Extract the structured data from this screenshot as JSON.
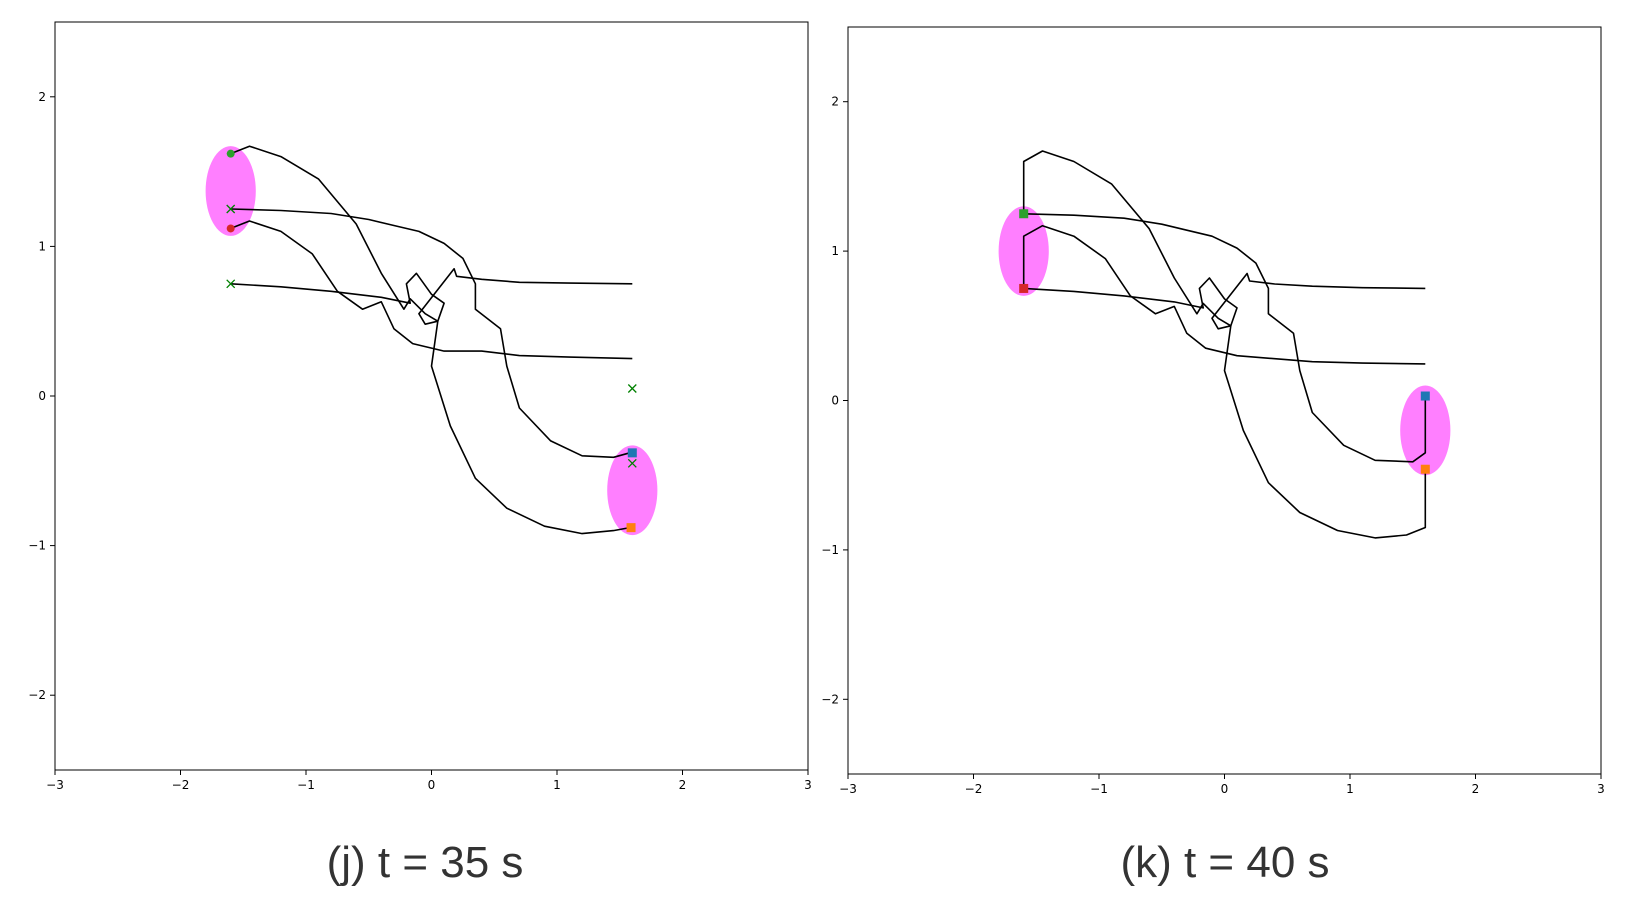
{
  "colors": {
    "ellipse": "#ff00ff",
    "path": "#000000",
    "green": "#2ca02c",
    "red": "#d62728",
    "blue": "#1f77b4",
    "orange": "#ff7f0e",
    "goal_x": "#008000"
  },
  "captions": [
    "(j) t = 35 s",
    "(k) t = 40 s"
  ],
  "chart_data": [
    {
      "type": "scatter",
      "xlim": [
        -3,
        3
      ],
      "ylim": [
        -2.5,
        2.5
      ],
      "xticks": [
        -3,
        -2,
        -1,
        0,
        1,
        2,
        3
      ],
      "yticks": [
        -2,
        -1,
        0,
        1,
        2
      ],
      "xtick_labels": [
        "−3",
        "−2",
        "−1",
        "0",
        "1",
        "2",
        "3"
      ],
      "ytick_labels": [
        "−2",
        "−1",
        "0",
        "1",
        "2"
      ],
      "ellipses": [
        {
          "cx": -1.6,
          "cy": 1.37,
          "rx": 0.2,
          "ry": 0.3
        },
        {
          "cx": 1.6,
          "cy": -0.63,
          "rx": 0.2,
          "ry": 0.3
        }
      ],
      "paths": [
        [
          [
            -1.6,
            1.62
          ],
          [
            -1.45,
            1.67
          ],
          [
            -1.2,
            1.6
          ],
          [
            -0.9,
            1.45
          ],
          [
            -0.6,
            1.15
          ],
          [
            -0.4,
            0.82
          ],
          [
            -0.22,
            0.58
          ],
          [
            -0.17,
            0.65
          ],
          [
            -0.05,
            0.55
          ],
          [
            0.05,
            0.5
          ],
          [
            0.0,
            0.2
          ],
          [
            0.15,
            -0.2
          ],
          [
            0.35,
            -0.55
          ],
          [
            0.6,
            -0.75
          ],
          [
            0.9,
            -0.87
          ],
          [
            1.2,
            -0.92
          ],
          [
            1.45,
            -0.9
          ],
          [
            1.58,
            -0.88
          ]
        ],
        [
          [
            -1.6,
            1.25
          ],
          [
            -1.2,
            1.24
          ],
          [
            -0.8,
            1.22
          ],
          [
            -0.5,
            1.18
          ],
          [
            -0.3,
            1.14
          ],
          [
            -0.1,
            1.1
          ],
          [
            0.1,
            1.02
          ],
          [
            0.25,
            0.92
          ],
          [
            0.35,
            0.75
          ],
          [
            0.35,
            0.58
          ],
          [
            0.55,
            0.45
          ],
          [
            0.6,
            0.2
          ],
          [
            0.7,
            -0.08
          ],
          [
            0.95,
            -0.3
          ],
          [
            1.2,
            -0.4
          ],
          [
            1.45,
            -0.41
          ],
          [
            1.58,
            -0.38
          ]
        ],
        [
          [
            -1.6,
            1.12
          ],
          [
            -1.45,
            1.17
          ],
          [
            -1.2,
            1.1
          ],
          [
            -0.95,
            0.95
          ],
          [
            -0.75,
            0.7
          ],
          [
            -0.55,
            0.58
          ],
          [
            -0.4,
            0.63
          ],
          [
            -0.3,
            0.45
          ],
          [
            -0.15,
            0.35
          ],
          [
            0.1,
            0.3
          ],
          [
            0.4,
            0.3
          ],
          [
            0.7,
            0.27
          ],
          [
            1.1,
            0.26
          ],
          [
            1.6,
            0.25
          ]
        ],
        [
          [
            -1.6,
            0.75
          ],
          [
            -1.2,
            0.73
          ],
          [
            -0.8,
            0.7
          ],
          [
            -0.4,
            0.66
          ],
          [
            -0.17,
            0.62
          ],
          [
            -0.2,
            0.75
          ],
          [
            -0.12,
            0.82
          ],
          [
            0.0,
            0.68
          ],
          [
            0.1,
            0.62
          ],
          [
            0.05,
            0.5
          ],
          [
            -0.05,
            0.48
          ],
          [
            -0.1,
            0.55
          ],
          [
            0.18,
            0.85
          ],
          [
            0.2,
            0.8
          ],
          [
            0.4,
            0.78
          ],
          [
            0.7,
            0.76
          ],
          [
            1.1,
            0.755
          ],
          [
            1.6,
            0.75
          ]
        ]
      ],
      "markers": [
        {
          "x": -1.6,
          "y": 1.62,
          "shape": "circle",
          "color": "#2ca02c"
        },
        {
          "x": -1.6,
          "y": 1.12,
          "shape": "circle",
          "color": "#d62728"
        },
        {
          "x": 1.6,
          "y": -0.38,
          "shape": "square",
          "color": "#1f77b4"
        },
        {
          "x": 1.59,
          "y": -0.88,
          "shape": "square",
          "color": "#ff7f0e"
        }
      ],
      "goals": [
        {
          "x": -1.6,
          "y": 1.25
        },
        {
          "x": -1.6,
          "y": 0.75
        },
        {
          "x": 1.6,
          "y": 0.05
        },
        {
          "x": 1.6,
          "y": -0.45
        }
      ]
    },
    {
      "type": "scatter",
      "xlim": [
        -3,
        3
      ],
      "ylim": [
        -2.5,
        2.5
      ],
      "xticks": [
        -3,
        -2,
        -1,
        0,
        1,
        2,
        3
      ],
      "yticks": [
        -2,
        -1,
        0,
        1,
        2
      ],
      "xtick_labels": [
        "−3",
        "−2",
        "−1",
        "0",
        "1",
        "2",
        "3"
      ],
      "ytick_labels": [
        "−2",
        "−1",
        "0",
        "1",
        "2"
      ],
      "ellipses": [
        {
          "cx": -1.6,
          "cy": 1.0,
          "rx": 0.2,
          "ry": 0.3
        },
        {
          "cx": 1.6,
          "cy": -0.2,
          "rx": 0.2,
          "ry": 0.3
        }
      ],
      "paths": [
        [
          [
            -1.6,
            1.25
          ],
          [
            -1.6,
            1.6
          ],
          [
            -1.45,
            1.67
          ],
          [
            -1.2,
            1.6
          ],
          [
            -0.9,
            1.45
          ],
          [
            -0.6,
            1.15
          ],
          [
            -0.4,
            0.82
          ],
          [
            -0.22,
            0.58
          ],
          [
            -0.17,
            0.65
          ],
          [
            -0.05,
            0.55
          ],
          [
            0.05,
            0.5
          ],
          [
            0.0,
            0.2
          ],
          [
            0.15,
            -0.2
          ],
          [
            0.35,
            -0.55
          ],
          [
            0.6,
            -0.75
          ],
          [
            0.9,
            -0.87
          ],
          [
            1.2,
            -0.92
          ],
          [
            1.45,
            -0.9
          ],
          [
            1.6,
            -0.85
          ],
          [
            1.6,
            -0.46
          ]
        ],
        [
          [
            -1.6,
            1.25
          ],
          [
            -1.2,
            1.24
          ],
          [
            -0.8,
            1.22
          ],
          [
            -0.5,
            1.18
          ],
          [
            -0.3,
            1.14
          ],
          [
            -0.1,
            1.1
          ],
          [
            0.1,
            1.02
          ],
          [
            0.25,
            0.92
          ],
          [
            0.35,
            0.75
          ],
          [
            0.35,
            0.58
          ],
          [
            0.55,
            0.45
          ],
          [
            0.6,
            0.2
          ],
          [
            0.7,
            -0.08
          ],
          [
            0.95,
            -0.3
          ],
          [
            1.2,
            -0.4
          ],
          [
            1.5,
            -0.41
          ],
          [
            1.6,
            -0.35
          ],
          [
            1.6,
            0.03
          ]
        ],
        [
          [
            -1.6,
            0.75
          ],
          [
            -1.6,
            1.1
          ],
          [
            -1.45,
            1.17
          ],
          [
            -1.2,
            1.1
          ],
          [
            -0.95,
            0.95
          ],
          [
            -0.75,
            0.7
          ],
          [
            -0.55,
            0.58
          ],
          [
            -0.4,
            0.63
          ],
          [
            -0.3,
            0.45
          ],
          [
            -0.15,
            0.35
          ],
          [
            0.1,
            0.3
          ],
          [
            0.4,
            0.28
          ],
          [
            0.7,
            0.26
          ],
          [
            1.1,
            0.25
          ],
          [
            1.6,
            0.245
          ]
        ],
        [
          [
            -1.6,
            0.75
          ],
          [
            -1.2,
            0.73
          ],
          [
            -0.8,
            0.7
          ],
          [
            -0.4,
            0.66
          ],
          [
            -0.17,
            0.62
          ],
          [
            -0.2,
            0.75
          ],
          [
            -0.12,
            0.82
          ],
          [
            0.0,
            0.68
          ],
          [
            0.1,
            0.62
          ],
          [
            0.05,
            0.5
          ],
          [
            -0.05,
            0.48
          ],
          [
            -0.1,
            0.55
          ],
          [
            0.18,
            0.85
          ],
          [
            0.2,
            0.8
          ],
          [
            0.4,
            0.78
          ],
          [
            0.7,
            0.765
          ],
          [
            1.1,
            0.755
          ],
          [
            1.6,
            0.75
          ]
        ]
      ],
      "markers": [
        {
          "x": -1.6,
          "y": 1.25,
          "shape": "square",
          "color": "#2ca02c"
        },
        {
          "x": -1.6,
          "y": 0.75,
          "shape": "square",
          "color": "#d62728"
        },
        {
          "x": 1.6,
          "y": 0.03,
          "shape": "square",
          "color": "#1f77b4"
        },
        {
          "x": 1.6,
          "y": -0.46,
          "shape": "square",
          "color": "#ff7f0e"
        }
      ],
      "goals": []
    }
  ]
}
